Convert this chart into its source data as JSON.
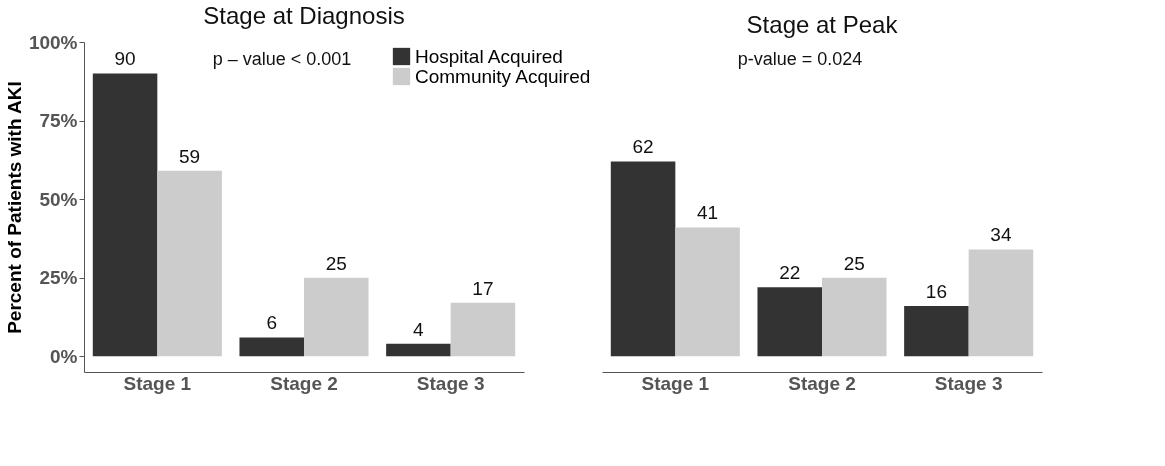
{
  "chart_data": [
    {
      "type": "bar",
      "title": "Stage at Diagnosis",
      "ylabel": "Percent of Patients with AKI",
      "categories": [
        "Stage 1",
        "Stage 2",
        "Stage 3"
      ],
      "series": [
        {
          "name": "Hospital Acquired",
          "color": "#333333",
          "values": [
            90,
            6,
            4
          ]
        },
        {
          "name": "Community Acquired",
          "color": "#cccccc",
          "values": [
            59,
            25,
            17
          ]
        }
      ],
      "ylim": [
        -5,
        100
      ],
      "yticks": [
        {
          "value": 0,
          "label": "0%"
        },
        {
          "value": 25,
          "label": "25%"
        },
        {
          "value": 50,
          "label": "50%"
        },
        {
          "value": 75,
          "label": "75%"
        },
        {
          "value": 100,
          "label": "100%"
        }
      ],
      "data_labels": true,
      "grid": false,
      "legend": "top right",
      "annotations": [
        "p – value < 0.001"
      ]
    },
    {
      "type": "bar",
      "title": "Stage at Peak",
      "categories": [
        "Stage 1",
        "Stage 2",
        "Stage 3"
      ],
      "series": [
        {
          "name": "Hospital Acquired",
          "color": "#333333",
          "values": [
            62,
            22,
            16
          ]
        },
        {
          "name": "Community Acquired",
          "color": "#cccccc",
          "values": [
            41,
            25,
            34
          ]
        }
      ],
      "ylim": [
        -5,
        100
      ],
      "data_labels": true,
      "grid": false,
      "legend": false,
      "tick_labels": "x",
      "annotations": [
        "p-value = 0.024"
      ]
    }
  ]
}
